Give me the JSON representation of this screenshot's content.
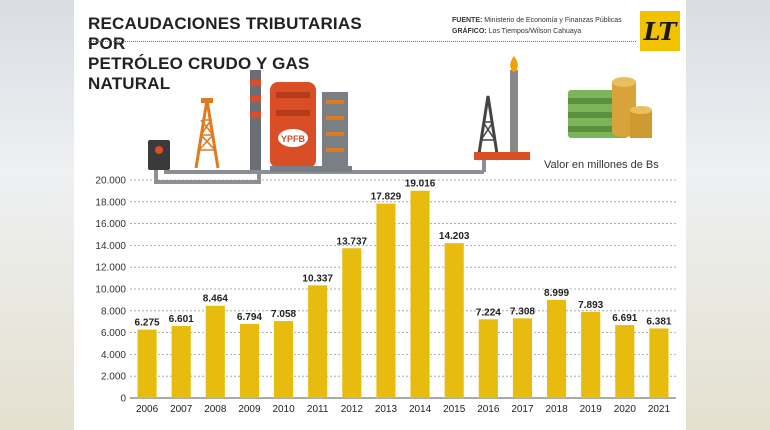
{
  "header": {
    "title_line1": "RECAUDACIONES TRIBUTARIAS POR",
    "title_line2": "PETRÓLEO CRUDO Y GAS NATURAL",
    "source_label": "FUENTE:",
    "source_value": "Ministerio de Economía y Finanzas Públicas",
    "graphic_label": "GRÁFICO:",
    "graphic_value": "Los Tiempos/Wilson Cahuaya",
    "logo_text": "LT",
    "refinery_label": "YPFB"
  },
  "colors": {
    "bar": "#e8bc0e",
    "gridline": "#999999",
    "logo_bg": "#f2c200",
    "refinery": "#d94e25"
  },
  "chart_data": {
    "type": "bar",
    "title": "RECAUDACIONES TRIBUTARIAS POR PETRÓLEO CRUDO Y GAS NATURAL",
    "subtitle": "Valor en millones de Bs",
    "categories": [
      "2006",
      "2007",
      "2008",
      "2009",
      "2010",
      "2011",
      "2012",
      "2013",
      "2014",
      "2015",
      "2016",
      "2017",
      "2018",
      "2019",
      "2020",
      "2021"
    ],
    "values": [
      6275,
      6601,
      8464,
      6794,
      7058,
      10337,
      13737,
      17829,
      19016,
      14203,
      7224,
      7308,
      8999,
      7893,
      6691,
      6381
    ],
    "value_labels": [
      "6.275",
      "6.601",
      "8.464",
      "6.794",
      "7.058",
      "10.337",
      "13.737",
      "17.829",
      "19.016",
      "14.203",
      "7.224",
      "7.308",
      "8.999",
      "7.893",
      "6.691",
      "6.381"
    ],
    "yticks": [
      0,
      2000,
      4000,
      6000,
      8000,
      10000,
      12000,
      14000,
      16000,
      18000,
      20000
    ],
    "ytick_labels": [
      "0",
      "2.000",
      "4.000",
      "6.000",
      "8.000",
      "10.000",
      "12.000",
      "14.000",
      "16.000",
      "18.000",
      "20.000"
    ],
    "ylim": [
      0,
      20000
    ],
    "grid": true,
    "xlabel": "",
    "ylabel": ""
  }
}
